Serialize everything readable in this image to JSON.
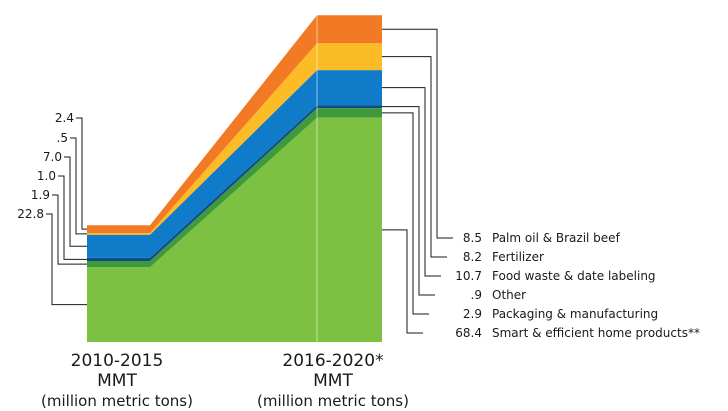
{
  "chart_data": {
    "type": "area",
    "x": [
      "2010-2015",
      "2016-2020*"
    ],
    "x_units": [
      "MMT",
      "MMT"
    ],
    "x_unit_notes": [
      "(million metric tons)",
      "(million metric tons)"
    ],
    "series": [
      {
        "name": "Smart & efficient home products**",
        "color": "#7dc142",
        "values": [
          22.8,
          68.4
        ]
      },
      {
        "name": "Packaging & manufacturing",
        "color": "#3f9a3c",
        "values": [
          1.9,
          2.9
        ]
      },
      {
        "name": "Other",
        "color": "#0e4d8a",
        "values": [
          1.0,
          0.9
        ]
      },
      {
        "name": "Food waste & date labeling",
        "color": "#0f7bc9",
        "values": [
          7.0,
          10.7
        ]
      },
      {
        "name": "Fertilizer",
        "color": "#fcbc25",
        "values": [
          0.5,
          8.2
        ]
      },
      {
        "name": "Palm oil & Brazil beef",
        "color": "#f37a25",
        "values": [
          2.4,
          8.5
        ]
      }
    ],
    "left_labels": [
      "2.4",
      ".5",
      "7.0",
      "1.0",
      "1.9",
      "22.8"
    ],
    "right_labels": [
      "8.5",
      "8.2",
      "10.7",
      ".9",
      "2.9",
      "68.4"
    ]
  }
}
